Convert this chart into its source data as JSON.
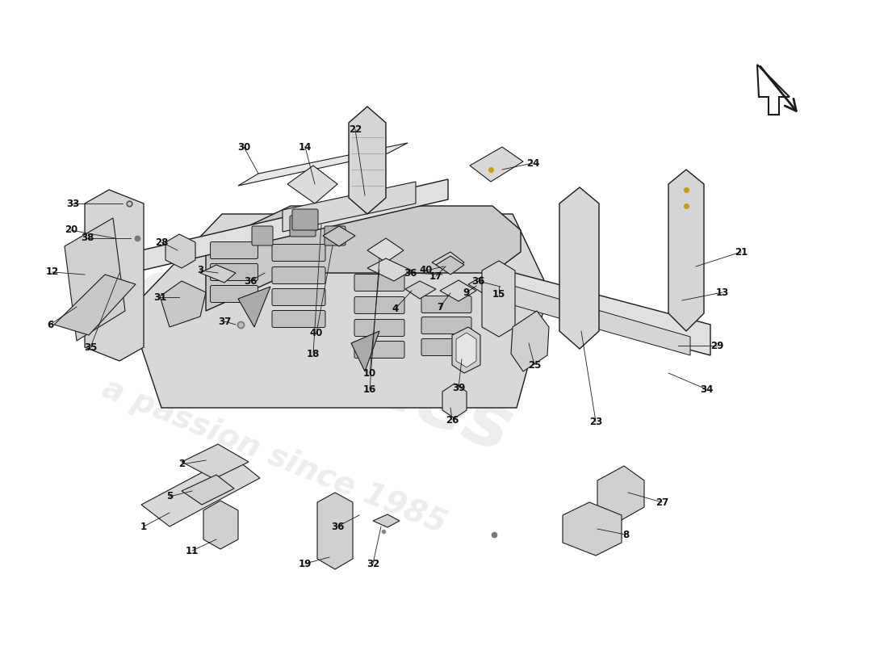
{
  "background_color": "#ffffff",
  "line_color": "#1a1a1a",
  "watermark1": "eurotices",
  "watermark2": "a passion since 1985",
  "fig_width": 11.0,
  "fig_height": 8.0,
  "dpi": 100
}
